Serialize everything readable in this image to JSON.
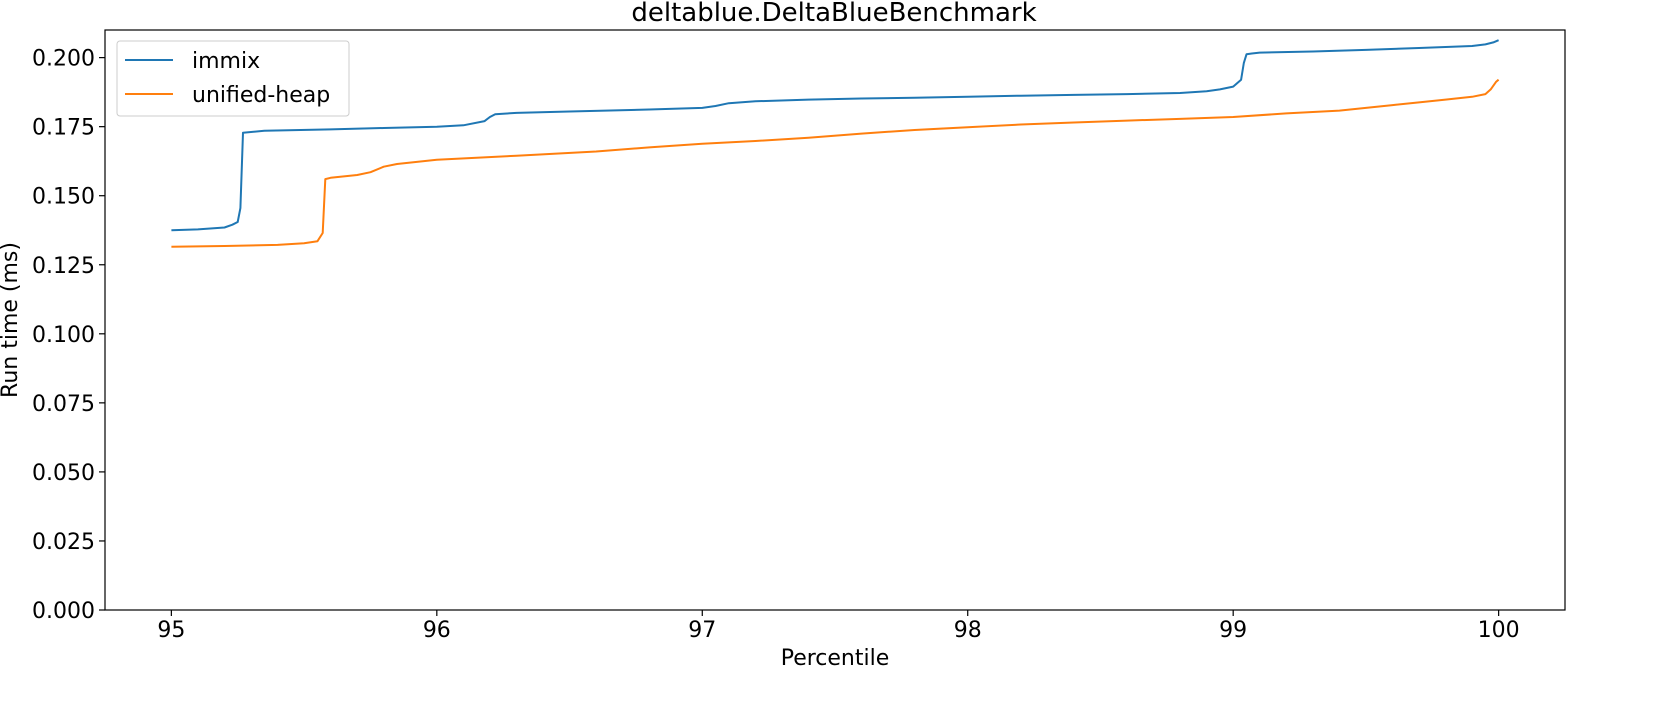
{
  "chart_data": {
    "type": "line",
    "title": "deltablue.DeltaBlueBenchmark",
    "xlabel": "Percentile",
    "ylabel": "Run time (ms)",
    "xlim": [
      94.75,
      100.25
    ],
    "ylim": [
      0.0,
      0.21
    ],
    "xticks": [
      95,
      96,
      97,
      98,
      99,
      100
    ],
    "xtick_labels": [
      "95",
      "96",
      "97",
      "98",
      "99",
      "100"
    ],
    "yticks": [
      0.0,
      0.025,
      0.05,
      0.075,
      0.1,
      0.125,
      0.15,
      0.175,
      0.2
    ],
    "ytick_labels": [
      "0.000",
      "0.025",
      "0.050",
      "0.075",
      "0.100",
      "0.125",
      "0.150",
      "0.175",
      "0.200"
    ],
    "grid": false,
    "legend_position": "top-left",
    "series": [
      {
        "name": "immix",
        "color": "#1f77b4",
        "x": [
          95.0,
          95.1,
          95.2,
          95.23,
          95.25,
          95.26,
          95.27,
          95.35,
          95.6,
          95.8,
          96.0,
          96.1,
          96.18,
          96.2,
          96.22,
          96.3,
          96.5,
          96.8,
          97.0,
          97.05,
          97.1,
          97.2,
          97.4,
          97.6,
          97.8,
          98.0,
          98.2,
          98.4,
          98.6,
          98.8,
          98.9,
          98.95,
          99.0,
          99.03,
          99.04,
          99.05,
          99.07,
          99.1,
          99.3,
          99.5,
          99.7,
          99.9,
          99.95,
          99.98,
          100.0
        ],
        "values": [
          0.1375,
          0.1378,
          0.1385,
          0.1395,
          0.1405,
          0.1455,
          0.1728,
          0.1735,
          0.174,
          0.1745,
          0.175,
          0.1755,
          0.177,
          0.1785,
          0.1795,
          0.18,
          0.1805,
          0.1812,
          0.1818,
          0.1825,
          0.1835,
          0.1842,
          0.1848,
          0.1852,
          0.1855,
          0.1858,
          0.1862,
          0.1865,
          0.1868,
          0.1872,
          0.1878,
          0.1885,
          0.1895,
          0.192,
          0.198,
          0.2012,
          0.2015,
          0.2018,
          0.2022,
          0.2028,
          0.2035,
          0.2042,
          0.2048,
          0.2055,
          0.2063
        ]
      },
      {
        "name": "unified-heap",
        "color": "#ff7f0e",
        "x": [
          95.0,
          95.2,
          95.4,
          95.5,
          95.55,
          95.57,
          95.58,
          95.6,
          95.7,
          95.75,
          95.8,
          95.85,
          96.0,
          96.3,
          96.6,
          96.8,
          97.0,
          97.2,
          97.4,
          97.6,
          97.8,
          98.0,
          98.2,
          98.4,
          98.6,
          98.8,
          99.0,
          99.2,
          99.4,
          99.5,
          99.6,
          99.7,
          99.8,
          99.9,
          99.95,
          99.97,
          99.99,
          100.0
        ],
        "values": [
          0.1315,
          0.1318,
          0.1322,
          0.1328,
          0.1335,
          0.1365,
          0.156,
          0.1565,
          0.1575,
          0.1585,
          0.1605,
          0.1615,
          0.163,
          0.1645,
          0.166,
          0.1675,
          0.1688,
          0.1698,
          0.171,
          0.1725,
          0.1738,
          0.1748,
          0.1758,
          0.1765,
          0.1772,
          0.1778,
          0.1785,
          0.1798,
          0.1808,
          0.1818,
          0.1828,
          0.1838,
          0.1848,
          0.1858,
          0.1868,
          0.1885,
          0.1912,
          0.192
        ]
      }
    ]
  }
}
